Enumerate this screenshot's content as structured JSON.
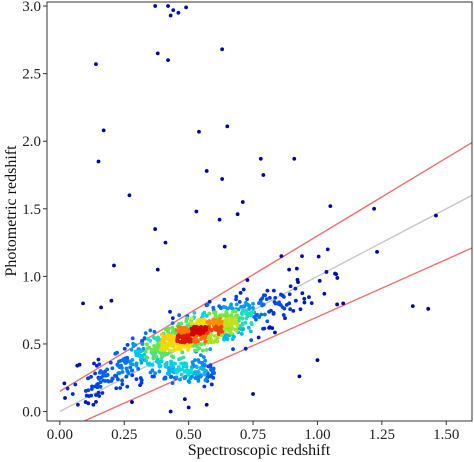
{
  "chart_data": {
    "type": "scatter",
    "xlabel": "Spectroscopic redshift",
    "ylabel": "Photometric redshift",
    "xlim": [
      -0.05,
      1.6
    ],
    "ylim": [
      -0.07,
      3.03
    ],
    "x_ticks": [
      0.0,
      0.25,
      0.5,
      0.75,
      1.0,
      1.25,
      1.5
    ],
    "x_tick_labels": [
      "0.00",
      "0.25",
      "0.50",
      "0.75",
      "1.00",
      "1.25",
      "1.50"
    ],
    "y_ticks": [
      0.0,
      0.5,
      1.0,
      1.5,
      2.0,
      2.5,
      3.0
    ],
    "y_tick_labels": [
      "0.0",
      "0.5",
      "1.0",
      "1.5",
      "2.0",
      "2.5",
      "3.0"
    ],
    "grid": false,
    "point_color_scale": "density (blue → cyan → yellow → red)",
    "reference_lines": [
      {
        "kind": "identity",
        "color": "#c8c8c8",
        "intercept": 0.0,
        "slope": 1.0
      },
      {
        "kind": "upper-bound",
        "color": "#f07070",
        "intercept": 0.15,
        "slope": 1.15
      },
      {
        "kind": "lower-bound",
        "color": "#f07070",
        "intercept": -0.15,
        "slope": 0.85
      }
    ],
    "density_core": {
      "x": 0.52,
      "y": 0.57
    },
    "outliers": [
      {
        "x": 0.37,
        "y": 3.0
      },
      {
        "x": 0.42,
        "y": 3.0
      },
      {
        "x": 0.44,
        "y": 2.97
      },
      {
        "x": 0.46,
        "y": 2.95
      },
      {
        "x": 0.49,
        "y": 2.99
      },
      {
        "x": 0.43,
        "y": 2.93
      },
      {
        "x": 0.38,
        "y": 2.65
      },
      {
        "x": 0.42,
        "y": 2.6
      },
      {
        "x": 0.63,
        "y": 2.68
      },
      {
        "x": 0.14,
        "y": 2.57
      },
      {
        "x": 0.17,
        "y": 2.08
      },
      {
        "x": 0.54,
        "y": 2.07
      },
      {
        "x": 0.65,
        "y": 2.11
      },
      {
        "x": 0.15,
        "y": 1.85
      },
      {
        "x": 0.78,
        "y": 1.87
      },
      {
        "x": 0.91,
        "y": 1.87
      },
      {
        "x": 0.57,
        "y": 1.78
      },
      {
        "x": 0.63,
        "y": 1.72
      },
      {
        "x": 0.79,
        "y": 1.75
      },
      {
        "x": 0.27,
        "y": 1.6
      },
      {
        "x": 0.71,
        "y": 1.55
      },
      {
        "x": 0.53,
        "y": 1.48
      },
      {
        "x": 0.62,
        "y": 1.42
      },
      {
        "x": 0.69,
        "y": 1.46
      },
      {
        "x": 1.05,
        "y": 1.52
      },
      {
        "x": 1.22,
        "y": 1.5
      },
      {
        "x": 1.46,
        "y": 1.45
      },
      {
        "x": 0.37,
        "y": 1.35
      },
      {
        "x": 0.41,
        "y": 1.25
      },
      {
        "x": 0.64,
        "y": 1.22
      },
      {
        "x": 0.21,
        "y": 1.08
      },
      {
        "x": 0.38,
        "y": 1.05
      },
      {
        "x": 0.86,
        "y": 1.15
      },
      {
        "x": 0.94,
        "y": 1.15
      },
      {
        "x": 1.04,
        "y": 1.2
      },
      {
        "x": 0.89,
        "y": 1.05
      },
      {
        "x": 0.09,
        "y": 0.8
      },
      {
        "x": 0.16,
        "y": 0.77
      },
      {
        "x": 0.2,
        "y": 0.82
      },
      {
        "x": 0.06,
        "y": 0.2
      },
      {
        "x": 0.03,
        "y": 0.17
      },
      {
        "x": 0.05,
        "y": 0.13
      },
      {
        "x": 0.02,
        "y": 0.1
      },
      {
        "x": 0.07,
        "y": 0.05
      },
      {
        "x": 0.1,
        "y": 0.07
      },
      {
        "x": 0.13,
        "y": 0.05
      },
      {
        "x": 0.15,
        "y": 0.14
      },
      {
        "x": 0.28,
        "y": 0.07
      },
      {
        "x": 0.43,
        "y": 0.0
      },
      {
        "x": 0.5,
        "y": 0.03
      },
      {
        "x": 0.57,
        "y": 0.05
      },
      {
        "x": 0.75,
        "y": 0.13
      },
      {
        "x": 0.93,
        "y": 0.26
      },
      {
        "x": 1.0,
        "y": 0.38
      },
      {
        "x": 1.1,
        "y": 0.8
      },
      {
        "x": 1.37,
        "y": 0.78
      },
      {
        "x": 1.43,
        "y": 0.76
      }
    ]
  }
}
